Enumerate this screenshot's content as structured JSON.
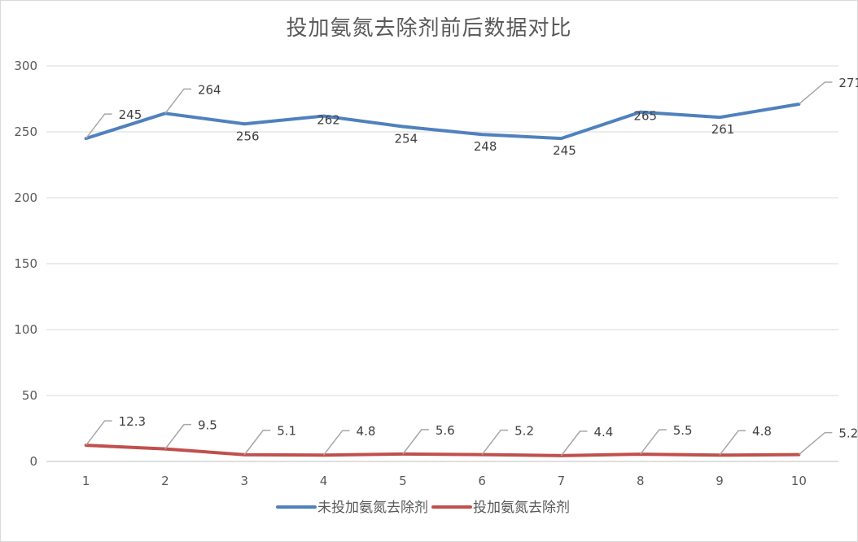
{
  "chart_data": {
    "type": "line",
    "title": "投加氨氮去除剂前后数据对比",
    "xlabel": "",
    "ylabel": "",
    "categories": [
      "1",
      "2",
      "3",
      "4",
      "5",
      "6",
      "7",
      "8",
      "9",
      "10"
    ],
    "ylim": [
      0,
      300
    ],
    "yticks": [
      0,
      50,
      100,
      150,
      200,
      250,
      300
    ],
    "grid": true,
    "legend_position": "bottom",
    "series": [
      {
        "name": "未投加氨氮去除剂",
        "color": "#4f81bd",
        "values": [
          245,
          264,
          256,
          262,
          254,
          248,
          245,
          265,
          261,
          271
        ],
        "labels": [
          "245",
          "264",
          "256",
          "262",
          "254",
          "248",
          "245",
          "265",
          "261",
          "271"
        ]
      },
      {
        "name": "投加氨氮去除剂",
        "color": "#c0504d",
        "values": [
          12.3,
          9.5,
          5.1,
          4.8,
          5.6,
          5.2,
          4.4,
          5.5,
          4.8,
          5.2
        ],
        "labels": [
          "12.3",
          "9.5",
          "5.1",
          "4.8",
          "5.6",
          "5.2",
          "4.4",
          "5.5",
          "4.8",
          "5.2"
        ]
      }
    ]
  }
}
